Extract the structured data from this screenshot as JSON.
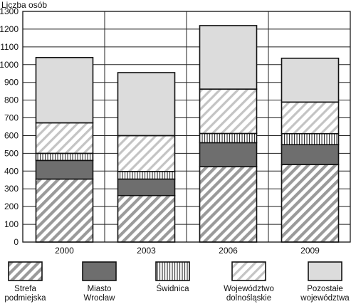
{
  "chart_data": {
    "type": "bar",
    "stacked": true,
    "ylabel": "Liczba osób",
    "ylim": [
      0,
      1300
    ],
    "yticks": [
      0,
      100,
      200,
      300,
      400,
      500,
      600,
      700,
      800,
      900,
      1000,
      1100,
      1200,
      1300
    ],
    "grid": true,
    "legend_position": "bottom",
    "categories": [
      "2000",
      "2003",
      "2006",
      "2009"
    ],
    "series": [
      {
        "name": "Strefa\npodmiejska",
        "pattern": "diagonal-dense",
        "values": [
          355,
          262,
          425,
          437
        ]
      },
      {
        "name": "Miasto\nWrocław",
        "pattern": "solid-dark",
        "values": [
          105,
          93,
          135,
          112
        ]
      },
      {
        "name": "Świdnica",
        "pattern": "vertical-lines",
        "values": [
          40,
          43,
          52,
          62
        ]
      },
      {
        "name": "Województwo\ndolnośląskie",
        "pattern": "diagonal-light",
        "values": [
          172,
          202,
          250,
          178
        ]
      },
      {
        "name": "Pozostałe\nwojewództwa",
        "pattern": "solid-light",
        "values": [
          368,
          355,
          358,
          247
        ]
      }
    ],
    "colors": {
      "frame": "#111111",
      "grid": "#222222",
      "dark_fill": "#6e6e6e",
      "light_fill": "#dcdcdc",
      "hatch": "#9a9a9a"
    }
  }
}
